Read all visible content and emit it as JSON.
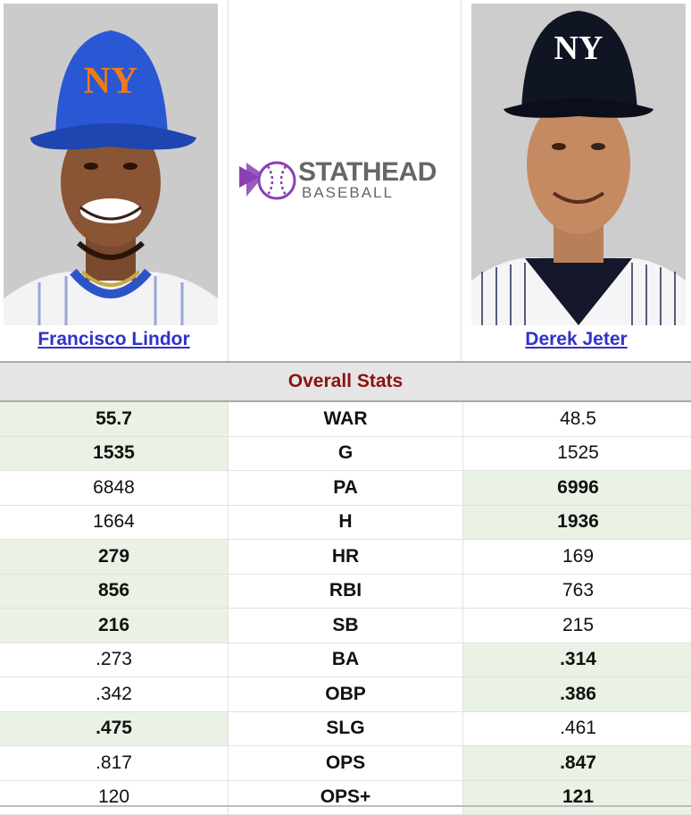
{
  "players": {
    "left": {
      "name": "Francisco Lindor",
      "cap_logo": "NY"
    },
    "right": {
      "name": "Derek Jeter",
      "cap_logo": "NY"
    }
  },
  "logo": {
    "title": "STATHEAD",
    "subtitle": "BASEBALL"
  },
  "section_title": "Overall Stats",
  "colors": {
    "link": "#2f33c9",
    "header_text": "#8b1313",
    "win_bg": "#e9f2e4",
    "logo_purple": "#8a3fb3"
  },
  "stats": [
    {
      "label": "WAR",
      "left": "55.7",
      "right": "48.5",
      "winner": "left"
    },
    {
      "label": "G",
      "left": "1535",
      "right": "1525",
      "winner": "left"
    },
    {
      "label": "PA",
      "left": "6848",
      "right": "6996",
      "winner": "right"
    },
    {
      "label": "H",
      "left": "1664",
      "right": "1936",
      "winner": "right"
    },
    {
      "label": "HR",
      "left": "279",
      "right": "169",
      "winner": "left"
    },
    {
      "label": "RBI",
      "left": "856",
      "right": "763",
      "winner": "left"
    },
    {
      "label": "SB",
      "left": "216",
      "right": "215",
      "winner": "left"
    },
    {
      "label": "BA",
      "left": ".273",
      "right": ".314",
      "winner": "right"
    },
    {
      "label": "OBP",
      "left": ".342",
      "right": ".386",
      "winner": "right"
    },
    {
      "label": "SLG",
      "left": ".475",
      "right": ".461",
      "winner": "left"
    },
    {
      "label": "OPS",
      "left": ".817",
      "right": ".847",
      "winner": "right"
    },
    {
      "label": "OPS+",
      "left": "120",
      "right": "121",
      "winner": "right"
    }
  ]
}
